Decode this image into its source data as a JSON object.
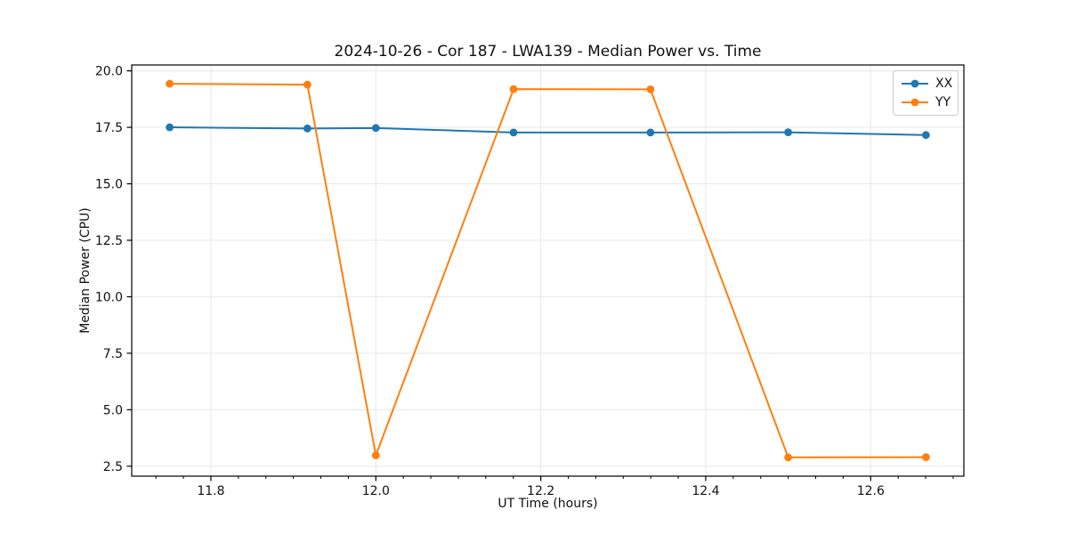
{
  "title": "2024-10-26 - Cor 187 - LWA139 - Median Power vs. Time",
  "chart_data": {
    "type": "line",
    "title": "2024-10-26 - Cor 187 - LWA139 - Median Power vs. Time",
    "xlabel": "UT Time (hours)",
    "ylabel": "Median Power (CPU)",
    "x": [
      11.75,
      11.917,
      12.0,
      12.167,
      12.333,
      12.5,
      12.667
    ],
    "series": [
      {
        "name": "XX",
        "color": "#1f77b4",
        "values": [
          17.5,
          17.45,
          17.47,
          17.27,
          17.27,
          17.28,
          17.16
        ]
      },
      {
        "name": "YY",
        "color": "#ff7f0e",
        "values": [
          19.43,
          19.39,
          2.98,
          19.19,
          19.18,
          2.89,
          2.9
        ]
      }
    ],
    "xlim": [
      11.704,
      12.713
    ],
    "ylim": [
      2.06,
      20.26
    ],
    "xticks": [
      11.8,
      12.0,
      12.2,
      12.4,
      12.6
    ],
    "yticks": [
      2.5,
      5.0,
      7.5,
      10.0,
      12.5,
      15.0,
      17.5,
      20.0
    ],
    "x_minor_divisions": 6,
    "grid": true,
    "legend_position": "top-right",
    "colors": {
      "grid": "#e8e8e8",
      "spine": "#000000",
      "tick": "#000000",
      "text": "#111111",
      "background": "#ffffff"
    }
  },
  "legend": {
    "items": [
      {
        "label": "XX"
      },
      {
        "label": "YY"
      }
    ]
  }
}
